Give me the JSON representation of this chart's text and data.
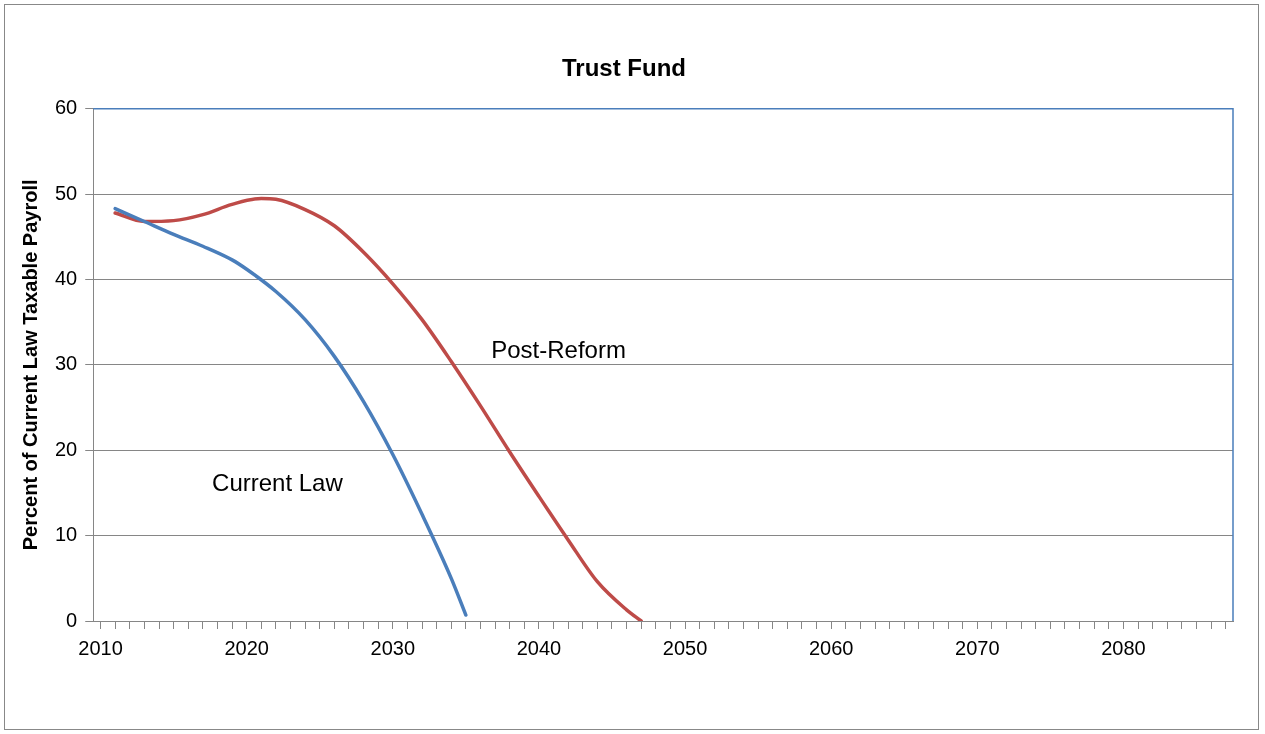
{
  "chart_data": {
    "type": "line",
    "title": "Trust Fund",
    "ylabel": "Percent of Current Law Taxable Payroll",
    "xlim": [
      2009.5,
      2087.5
    ],
    "xticks": [
      2010,
      {
        "value": 2011,
        "label": null
      },
      {
        "value": 2012,
        "label": null
      },
      {
        "value": 2013,
        "label": null
      },
      {
        "value": 2014,
        "label": null
      },
      {
        "value": 2015,
        "label": null
      },
      {
        "value": 2016,
        "label": null
      },
      {
        "value": 2017,
        "label": null
      },
      {
        "value": 2018,
        "label": null
      },
      {
        "value": 2019,
        "label": null
      },
      2020,
      {
        "value": 2021,
        "label": null
      },
      {
        "value": 2022,
        "label": null
      },
      {
        "value": 2023,
        "label": null
      },
      {
        "value": 2024,
        "label": null
      },
      {
        "value": 2025,
        "label": null
      },
      {
        "value": 2026,
        "label": null
      },
      {
        "value": 2027,
        "label": null
      },
      {
        "value": 2028,
        "label": null
      },
      {
        "value": 2029,
        "label": null
      },
      2030,
      {
        "value": 2031,
        "label": null
      },
      {
        "value": 2032,
        "label": null
      },
      {
        "value": 2033,
        "label": null
      },
      {
        "value": 2034,
        "label": null
      },
      {
        "value": 2035,
        "label": null
      },
      {
        "value": 2036,
        "label": null
      },
      {
        "value": 2037,
        "label": null
      },
      {
        "value": 2038,
        "label": null
      },
      {
        "value": 2039,
        "label": null
      },
      2040,
      {
        "value": 2041,
        "label": null
      },
      {
        "value": 2042,
        "label": null
      },
      {
        "value": 2043,
        "label": null
      },
      {
        "value": 2044,
        "label": null
      },
      {
        "value": 2045,
        "label": null
      },
      {
        "value": 2046,
        "label": null
      },
      {
        "value": 2047,
        "label": null
      },
      {
        "value": 2048,
        "label": null
      },
      {
        "value": 2049,
        "label": null
      },
      2050,
      {
        "value": 2051,
        "label": null
      },
      {
        "value": 2052,
        "label": null
      },
      {
        "value": 2053,
        "label": null
      },
      {
        "value": 2054,
        "label": null
      },
      {
        "value": 2055,
        "label": null
      },
      {
        "value": 2056,
        "label": null
      },
      {
        "value": 2057,
        "label": null
      },
      {
        "value": 2058,
        "label": null
      },
      {
        "value": 2059,
        "label": null
      },
      2060,
      {
        "value": 2061,
        "label": null
      },
      {
        "value": 2062,
        "label": null
      },
      {
        "value": 2063,
        "label": null
      },
      {
        "value": 2064,
        "label": null
      },
      {
        "value": 2065,
        "label": null
      },
      {
        "value": 2066,
        "label": null
      },
      {
        "value": 2067,
        "label": null
      },
      {
        "value": 2068,
        "label": null
      },
      {
        "value": 2069,
        "label": null
      },
      2070,
      {
        "value": 2071,
        "label": null
      },
      {
        "value": 2072,
        "label": null
      },
      {
        "value": 2073,
        "label": null
      },
      {
        "value": 2074,
        "label": null
      },
      {
        "value": 2075,
        "label": null
      },
      {
        "value": 2076,
        "label": null
      },
      {
        "value": 2077,
        "label": null
      },
      {
        "value": 2078,
        "label": null
      },
      {
        "value": 2079,
        "label": null
      },
      2080,
      {
        "value": 2081,
        "label": null
      },
      {
        "value": 2082,
        "label": null
      },
      {
        "value": 2083,
        "label": null
      },
      {
        "value": 2084,
        "label": null
      },
      {
        "value": 2085,
        "label": null
      },
      {
        "value": 2086,
        "label": null
      },
      {
        "value": 2087,
        "label": null
      }
    ],
    "ylim": [
      0,
      60
    ],
    "yticks": [
      0,
      10,
      20,
      30,
      40,
      50,
      60
    ],
    "grid": "y",
    "legend": false,
    "marker": "none",
    "line_style": "solid",
    "series": [
      {
        "name": "Current Law",
        "color": "#4a7ebb",
        "x": [
          2011,
          2013,
          2015,
          2017,
          2019,
          2020,
          2022,
          2024,
          2026,
          2028,
          2030,
          2032,
          2034,
          2035
        ],
        "values": [
          48.3,
          46.8,
          45.3,
          43.9,
          42.3,
          41.2,
          38.6,
          35.3,
          31,
          25.7,
          19.5,
          12.5,
          5,
          0.7
        ]
      },
      {
        "name": "Post-Reform",
        "color": "#be4b48",
        "x": [
          2011,
          2013,
          2015,
          2017,
          2019,
          2021,
          2022,
          2024,
          2026,
          2028,
          2030,
          2032,
          2034,
          2036,
          2038,
          2040,
          2042,
          2044,
          2046,
          2047
        ],
        "values": [
          47.8,
          46.8,
          46.9,
          47.6,
          48.8,
          49.5,
          49.4,
          48.2,
          46.3,
          43.2,
          39.5,
          35.3,
          30.4,
          25.2,
          19.8,
          14.6,
          9.5,
          4.6,
          1.3,
          0
        ]
      }
    ]
  }
}
